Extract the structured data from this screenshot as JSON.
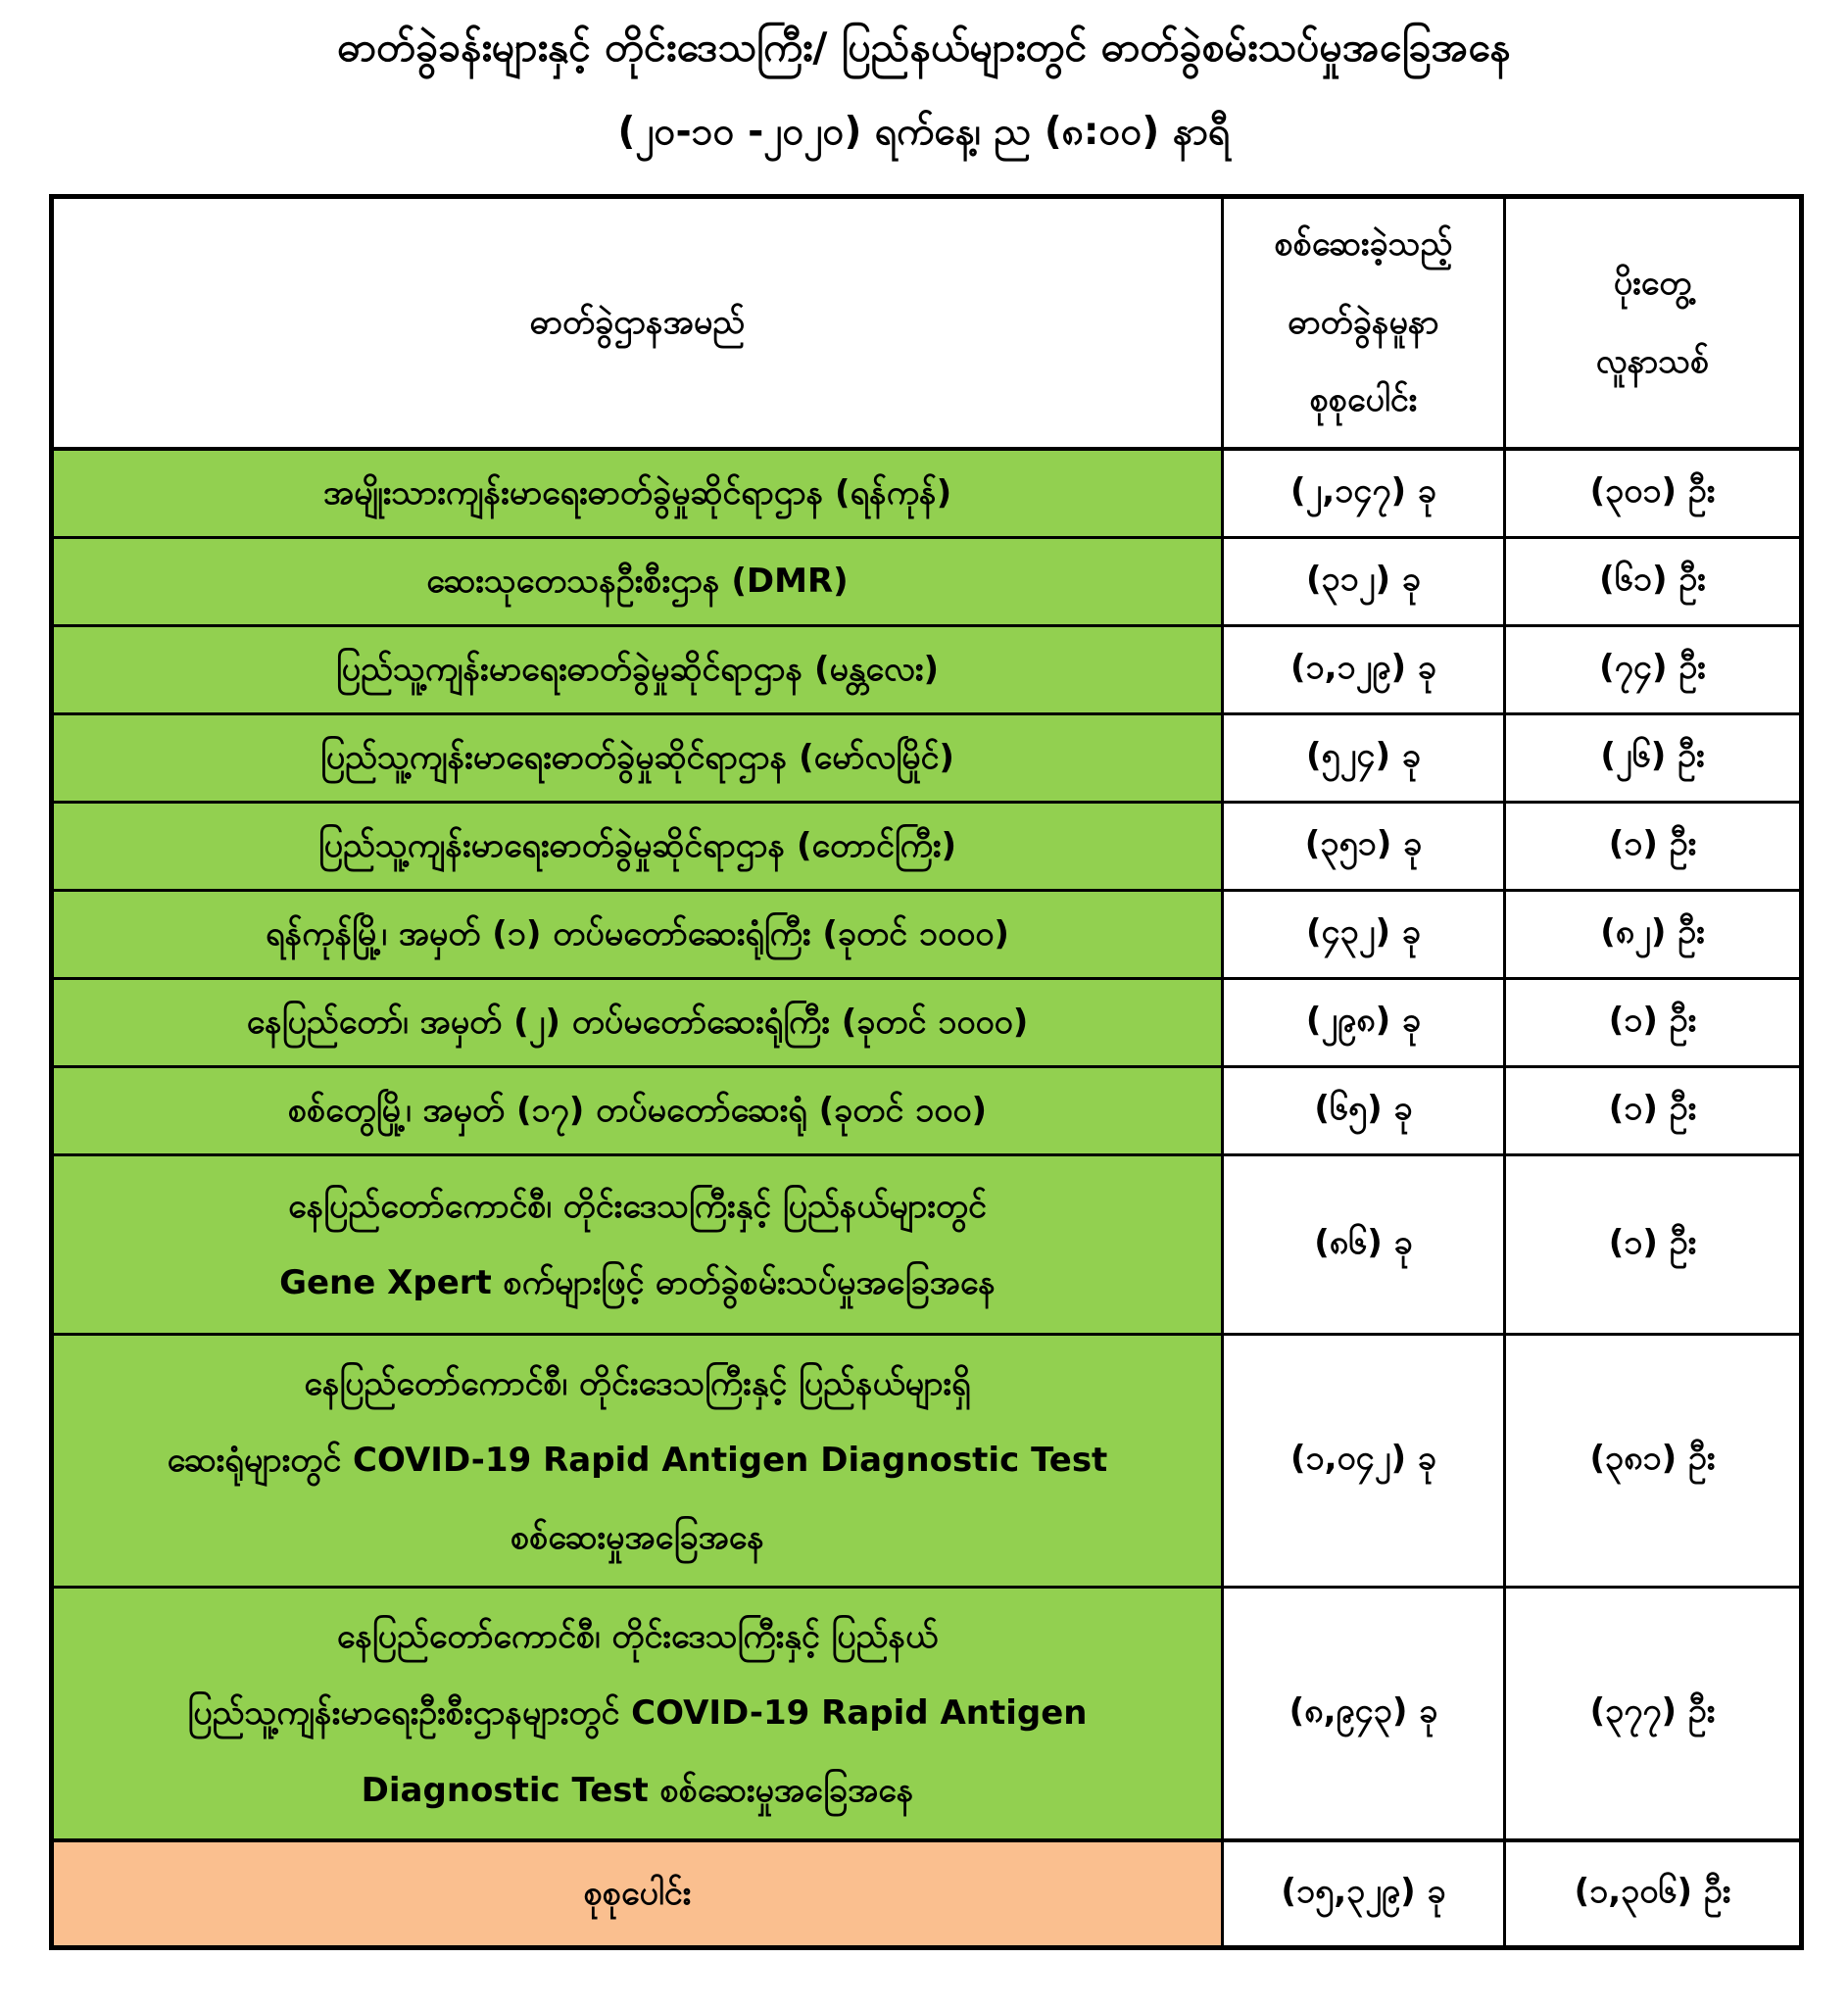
{
  "title": {
    "line1": "ဓာတ်ခွဲခန်းများနှင့် တိုင်းဒေသကြီး/ ပြည်နယ်များတွင် ဓာတ်ခွဲစမ်းသပ်မှုအခြေအနေ",
    "line2": "(၂၀-၁၀ -၂၀၂၀) ရက်နေ့၊ ည (၈:၀၀) နာရီ"
  },
  "colors": {
    "row_green": "#92D050",
    "total_orange": "#FABF8F",
    "border_black": "#000000"
  },
  "table": {
    "headers": {
      "name": "ဓာတ်ခွဲဌာနအမည်",
      "tests": "စစ်ဆေးခဲ့သည့်\nဓာတ်ခွဲနမူနာ\nစုစုပေါင်း",
      "positives": "ပိုးတွေ့\nလူနာသစ်"
    },
    "rows": [
      {
        "name": "အမျိုးသားကျန်းမာရေးဓာတ်ခွဲမှုဆိုင်ရာဌာန (ရန်ကုန်)",
        "tests": "(၂,၁၄၇) ခု",
        "positives": "(၃၀၁) ဦး"
      },
      {
        "name": "ဆေးသုတေသနဦးစီးဌာန (DMR)",
        "tests": "(၃၁၂) ခု",
        "positives": "(၆၁) ဦး"
      },
      {
        "name": "ပြည်သူ့ကျန်းမာရေးဓာတ်ခွဲမှုဆိုင်ရာဌာန (မန္တလေး)",
        "tests": "(၁,၁၂၉) ခု",
        "positives": "(၇၄) ဦး"
      },
      {
        "name": "ပြည်သူ့ကျန်းမာရေးဓာတ်ခွဲမှုဆိုင်ရာဌာန (မော်လမြိုင်)",
        "tests": "(၅၂၄) ခု",
        "positives": "(၂၆) ဦး"
      },
      {
        "name": "ပြည်သူ့ကျန်းမာရေးဓာတ်ခွဲမှုဆိုင်ရာဌာန (တောင်ကြီး)",
        "tests": "(၃၅၁) ခု",
        "positives": "(၁) ဦး"
      },
      {
        "name": "ရန်ကုန်မြို့၊ အမှတ် (၁) တပ်မတော်ဆေးရုံကြီး (ခုတင် ၁၀၀၀)",
        "tests": "(၄၃၂) ခု",
        "positives": "(၈၂) ဦး"
      },
      {
        "name": "နေပြည်တော်၊ အမှတ် (၂) တပ်မတော်ဆေးရုံကြီး (ခုတင် ၁၀၀၀)",
        "tests": "(၂၉၈) ခု",
        "positives": "(၁) ဦး"
      },
      {
        "name": "စစ်တွေမြို့၊ အမှတ် (၁၇) တပ်မတော်ဆေးရုံ (ခုတင် ၁၀၀)",
        "tests": "(၆၅) ခု",
        "positives": "(၁) ဦး"
      },
      {
        "name": "နေပြည်တော်ကောင်စီ၊ တိုင်းဒေသကြီးနှင့် ပြည်နယ်များတွင်\nGene Xpert စက်များဖြင့် ဓာတ်ခွဲစမ်းသပ်မှုအခြေအနေ",
        "tests": "(၈၆) ခု",
        "positives": "(၁) ဦး"
      },
      {
        "name": "နေပြည်တော်ကောင်စီ၊ တိုင်းဒေသကြီးနှင့် ပြည်နယ်များရှိ\nဆေးရုံများတွင် COVID-19 Rapid Antigen Diagnostic Test\nစစ်ဆေးမှုအခြေအနေ",
        "tests": "(၁,၀၄၂) ခု",
        "positives": "(၃၈၁) ဦး"
      },
      {
        "name": "နေပြည်တော်ကောင်စီ၊ တိုင်းဒေသကြီးနှင့် ပြည်နယ်\nပြည်သူ့ကျန်းမာရေးဦးစီးဌာနများတွင်  COVID-19 Rapid Antigen\nDiagnostic Test စစ်ဆေးမှုအခြေအနေ",
        "tests": "(၈,၉၄၃) ခု",
        "positives": "(၃၇၇) ဦး"
      }
    ],
    "total": {
      "label": "စုစုပေါင်း",
      "tests": "(၁၅,၃၂၉) ခု",
      "positives": "(၁,၃၀၆) ဦး"
    }
  }
}
